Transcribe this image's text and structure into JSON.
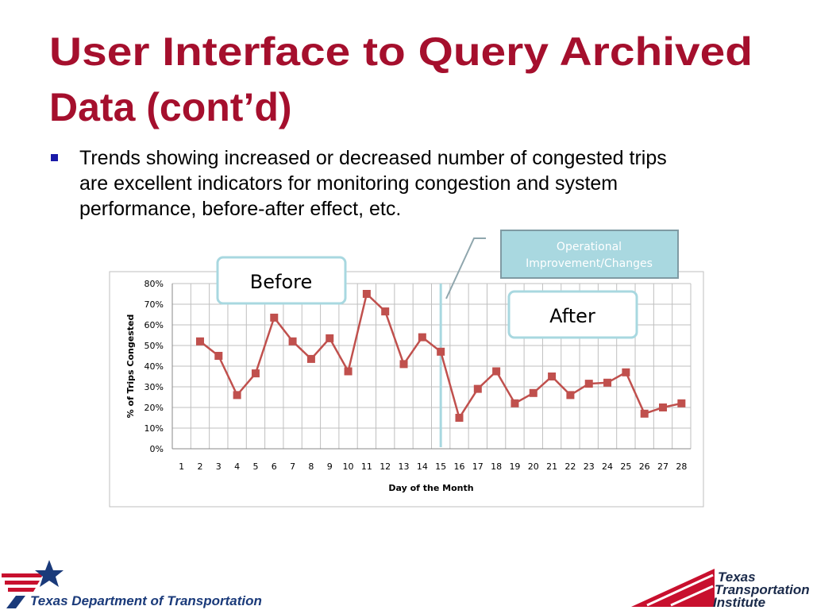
{
  "slide": {
    "title_lines": [
      "User Interface to Query Archived",
      "Data (cont’d)"
    ],
    "bullet_lines": [
      "Trends showing increased or decreased number of congested trips",
      "are excellent indicators for monitoring congestion and system",
      "performance, before-after effect, etc."
    ],
    "callouts": {
      "before": "Before",
      "after": "After",
      "event_lines": [
        "Operational",
        "Improvement/Changes"
      ]
    },
    "logos": {
      "txdot": "Texas Department of Transportation",
      "tti_lines": [
        "Texas",
        "Transportation",
        "Institute"
      ]
    }
  },
  "chart_data": {
    "type": "line",
    "categories": [
      "1",
      "2",
      "3",
      "4",
      "5",
      "6",
      "7",
      "8",
      "9",
      "10",
      "11",
      "12",
      "13",
      "14",
      "15",
      "16",
      "17",
      "18",
      "19",
      "20",
      "21",
      "22",
      "23",
      "24",
      "25",
      "26",
      "27",
      "28"
    ],
    "series": [
      {
        "name": "% of Trips Congested",
        "color": "#c0504d",
        "values": [
          null,
          52,
          45,
          26,
          36.5,
          63.5,
          52,
          43.5,
          53.5,
          37.5,
          75,
          66.5,
          41,
          54,
          47,
          15,
          29,
          37.5,
          22,
          27,
          35,
          26,
          31.5,
          32,
          37,
          17,
          20,
          22
        ]
      }
    ],
    "y_label": "% of Trips Congested",
    "x_label": "Day of the Month",
    "ylim": [
      0,
      80
    ],
    "yticks": [
      {
        "value": 0,
        "label": "0%"
      },
      {
        "value": 10,
        "label": "10%"
      },
      {
        "value": 20,
        "label": "20%"
      },
      {
        "value": 30,
        "label": "30%"
      },
      {
        "value": 40,
        "label": "40%"
      },
      {
        "value": 50,
        "label": "50%"
      },
      {
        "value": 60,
        "label": "60%"
      },
      {
        "value": 70,
        "label": "70%"
      },
      {
        "value": 80,
        "label": "80%"
      }
    ],
    "grid": true,
    "event_category": "15",
    "event_color": "#a8d8e0"
  }
}
